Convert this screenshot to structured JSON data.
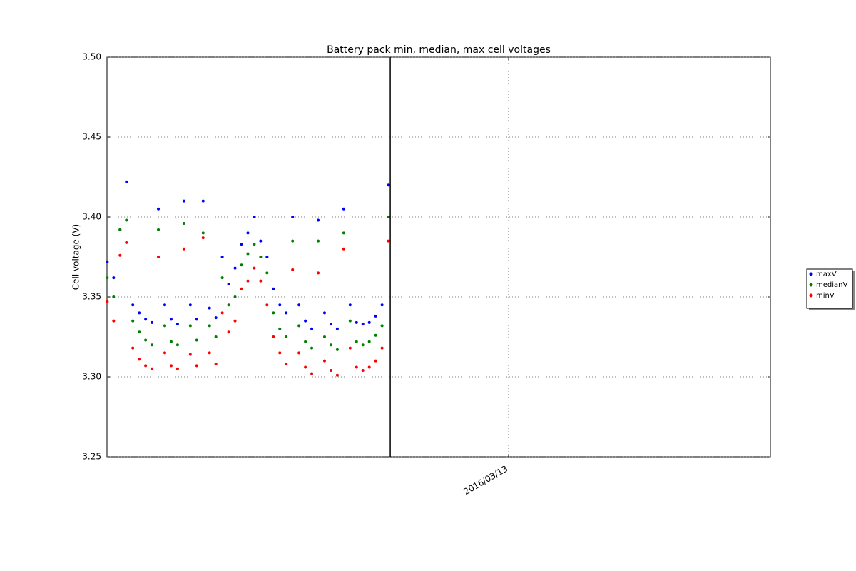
{
  "chart_data": {
    "type": "scatter",
    "title": "Battery pack min, median, max cell voltages",
    "y_label": "Cell voltage (V)",
    "x": [
      735655.3,
      735655.55,
      735655.8,
      735656.05,
      735656.3,
      735656.55,
      735656.8,
      735657.05,
      735657.3,
      735657.55,
      735657.8,
      735658.05,
      735658.3,
      735658.55,
      735658.8,
      735659.05,
      735659.3,
      735659.55,
      735659.8,
      735660.05,
      735660.3,
      735660.55,
      735660.8,
      735661.05,
      735661.3,
      735661.55,
      735661.8,
      735662.05,
      735662.3,
      735662.55,
      735662.8,
      735663.05,
      735663.3,
      735663.55,
      735663.8,
      735664.05,
      735664.3,
      735664.55,
      735664.8,
      735665.05,
      735665.3,
      735665.55,
      735665.8,
      735666.05,
      735666.3
    ],
    "series": [
      {
        "name": "maxV",
        "color": "#0000ff",
        "values": [
          3.372,
          3.362,
          3.392,
          3.422,
          3.345,
          3.34,
          3.336,
          3.334,
          3.405,
          3.345,
          3.336,
          3.333,
          3.41,
          3.345,
          3.336,
          3.41,
          3.343,
          3.337,
          3.375,
          3.358,
          3.368,
          3.383,
          3.39,
          3.4,
          3.385,
          3.375,
          3.355,
          3.345,
          3.34,
          3.4,
          3.345,
          3.335,
          3.33,
          3.398,
          3.34,
          3.333,
          3.33,
          3.405,
          3.345,
          3.334,
          3.333,
          3.334,
          3.338,
          3.345,
          3.42
        ]
      },
      {
        "name": "medianV",
        "color": "#008000",
        "values": [
          3.362,
          3.35,
          3.392,
          3.398,
          3.335,
          3.328,
          3.323,
          3.32,
          3.392,
          3.332,
          3.322,
          3.32,
          3.396,
          3.332,
          3.323,
          3.39,
          3.332,
          3.325,
          3.362,
          3.345,
          3.35,
          3.37,
          3.377,
          3.383,
          3.375,
          3.365,
          3.34,
          3.33,
          3.325,
          3.385,
          3.332,
          3.322,
          3.318,
          3.385,
          3.325,
          3.32,
          3.317,
          3.39,
          3.335,
          3.322,
          3.32,
          3.322,
          3.326,
          3.332,
          3.4
        ]
      },
      {
        "name": "minV",
        "color": "#ff0000",
        "values": [
          3.347,
          3.335,
          3.376,
          3.384,
          3.318,
          3.311,
          3.307,
          3.305,
          3.375,
          3.315,
          3.307,
          3.305,
          3.38,
          3.314,
          3.307,
          3.387,
          3.315,
          3.308,
          3.34,
          3.328,
          3.335,
          3.355,
          3.36,
          3.368,
          3.36,
          3.345,
          3.325,
          3.315,
          3.308,
          3.367,
          3.315,
          3.306,
          3.302,
          3.365,
          3.31,
          3.304,
          3.301,
          3.38,
          3.318,
          3.306,
          3.304,
          3.306,
          3.31,
          3.318,
          3.385
        ]
      }
    ],
    "xlim": [
      735655.29,
      735681.24
    ],
    "xticks": [
      {
        "value": 735671,
        "label": "2016/03/13"
      }
    ],
    "ylim": [
      3.25,
      3.5
    ],
    "yticks": [
      3.25,
      {
        "value": 3.3,
        "label": "3.30"
      },
      3.35,
      {
        "value": 3.4,
        "label": "3.40"
      },
      3.45,
      {
        "value": 3.5,
        "label": "3.50"
      }
    ],
    "vline": 735666.37,
    "grid": true,
    "legend": "right"
  }
}
